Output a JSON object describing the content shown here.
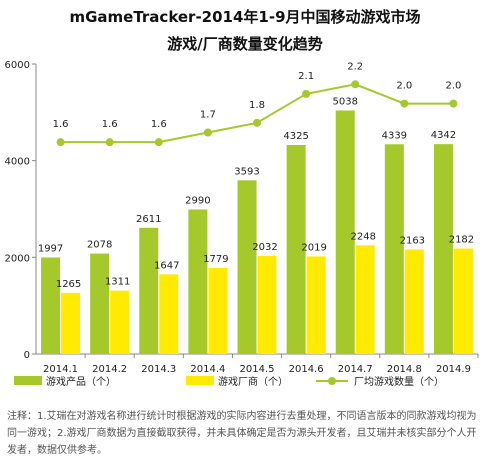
{
  "chart_data": {
    "type": "bar+line",
    "title": "mGameTracker-2014年1-9月中国移动游戏市场",
    "subtitle": "游戏/厂商数量变化趋势",
    "categories": [
      "2014.1",
      "2014.2",
      "2014.3",
      "2014.4",
      "2014.5",
      "2014.6",
      "2014.7",
      "2014.8",
      "2014.9"
    ],
    "series": [
      {
        "name": "游戏产品（个）",
        "type": "bar",
        "color": "#a5c82a",
        "values": [
          1997,
          2078,
          2611,
          2990,
          3593,
          4325,
          5038,
          4339,
          4342
        ]
      },
      {
        "name": "游戏厂商（个）",
        "type": "bar",
        "color": "#ffea00",
        "values": [
          1265,
          1311,
          1647,
          1779,
          2032,
          2019,
          2248,
          2163,
          2182
        ]
      },
      {
        "name": "厂均游戏数量（个）",
        "type": "line",
        "color": "#a5c82a",
        "values": [
          1.6,
          1.6,
          1.6,
          1.7,
          1.8,
          2.1,
          2.2,
          2.0,
          2.0
        ],
        "labels": [
          "1.6",
          "1.6",
          "1.6",
          "1.7",
          "1.8",
          "2.1",
          "2.2",
          "2.0",
          "2.0"
        ]
      }
    ],
    "y_ticks": [
      "0",
      "2000",
      "4000",
      "6000"
    ],
    "ylim": [
      0,
      6000
    ],
    "grid": false,
    "legend": "bottom"
  },
  "note": "注释：1.艾瑞在对游戏名称进行统计时根据游戏的实际内容进行去重处理，不同语言版本的同款游戏均视为同一游戏；2.游戏厂商数据为直接截取获得，并未具体确定是否为源头开发者，且艾瑞并未核实部分个人开发者，数据仅供参考。"
}
